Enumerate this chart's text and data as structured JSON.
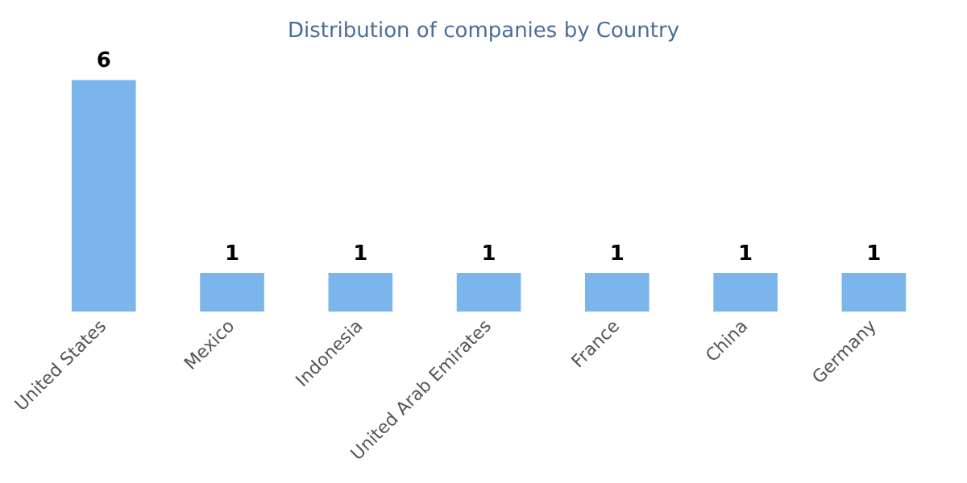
{
  "chart_data": {
    "type": "bar",
    "title": "Distribution of companies by Country",
    "categories": [
      "United States",
      "Mexico",
      "Indonesia",
      "United Arab Emirates",
      "France",
      "China",
      "Germany"
    ],
    "values": [
      6,
      1,
      1,
      1,
      1,
      1,
      1
    ],
    "color": "#7cb5ec",
    "data_labels": true,
    "grid": false,
    "legend": false
  }
}
